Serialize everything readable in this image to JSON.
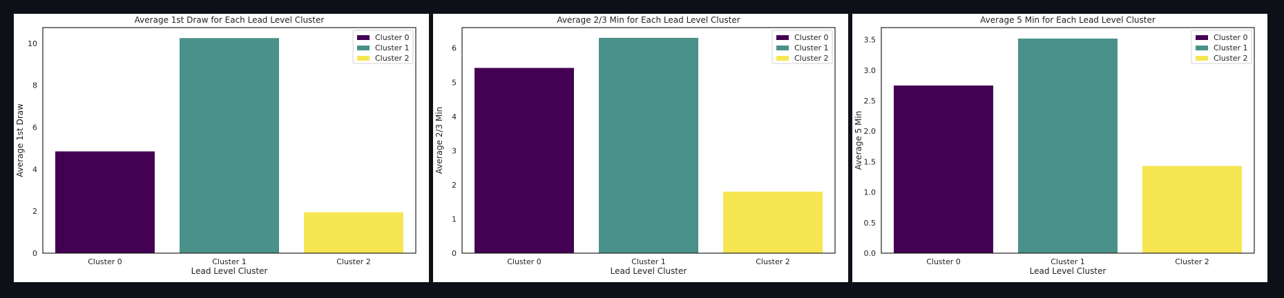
{
  "charts": {
    "chart_data": [
      {
        "type": "bar",
        "title": "Average 1st Draw for Each Lead Level Cluster",
        "xlabel": "Lead Level Cluster",
        "ylabel": "Average 1st Draw",
        "categories": [
          "Cluster 0",
          "Cluster 1",
          "Cluster 2"
        ],
        "values": [
          4.85,
          10.25,
          1.95
        ],
        "ylim": [
          0,
          10.75
        ],
        "yticks": [
          0,
          2,
          4,
          6,
          8,
          10
        ],
        "ytick_labels": [
          "0",
          "2",
          "4",
          "6",
          "8",
          "10"
        ],
        "colors": [
          "#440154",
          "#4a9189",
          "#f6e652"
        ],
        "legend": [
          "Cluster 0",
          "Cluster 1",
          "Cluster 2"
        ],
        "legend_position": "top-right",
        "grid": false
      },
      {
        "type": "bar",
        "title": "Average 2/3 Min for Each Lead Level Cluster",
        "xlabel": "Lead Level Cluster",
        "ylabel": "Average 2/3 Min",
        "categories": [
          "Cluster 0",
          "Cluster 1",
          "Cluster 2"
        ],
        "values": [
          5.42,
          6.3,
          1.8
        ],
        "ylim": [
          0,
          6.6
        ],
        "yticks": [
          0,
          1,
          2,
          3,
          4,
          5,
          6
        ],
        "ytick_labels": [
          "0",
          "1",
          "2",
          "3",
          "4",
          "5",
          "6"
        ],
        "colors": [
          "#440154",
          "#4a9189",
          "#f6e652"
        ],
        "legend": [
          "Cluster 0",
          "Cluster 1",
          "Cluster 2"
        ],
        "legend_position": "top-right",
        "grid": false
      },
      {
        "type": "bar",
        "title": "Average 5 Min for Each Lead Level Cluster",
        "xlabel": "Lead Level Cluster",
        "ylabel": "Average 5 Min",
        "categories": [
          "Cluster 0",
          "Cluster 1",
          "Cluster 2"
        ],
        "values": [
          2.75,
          3.52,
          1.43
        ],
        "ylim": [
          0,
          3.7
        ],
        "yticks": [
          0,
          0.5,
          1,
          1.5,
          2,
          2.5,
          3,
          3.5
        ],
        "ytick_labels": [
          "0.0",
          "0.5",
          "1.0",
          "1.5",
          "2.0",
          "2.5",
          "3.0",
          "3.5"
        ],
        "colors": [
          "#440154",
          "#4a9189",
          "#f6e652"
        ],
        "legend": [
          "Cluster 0",
          "Cluster 1",
          "Cluster 2"
        ],
        "legend_position": "top-right",
        "grid": false
      }
    ]
  }
}
